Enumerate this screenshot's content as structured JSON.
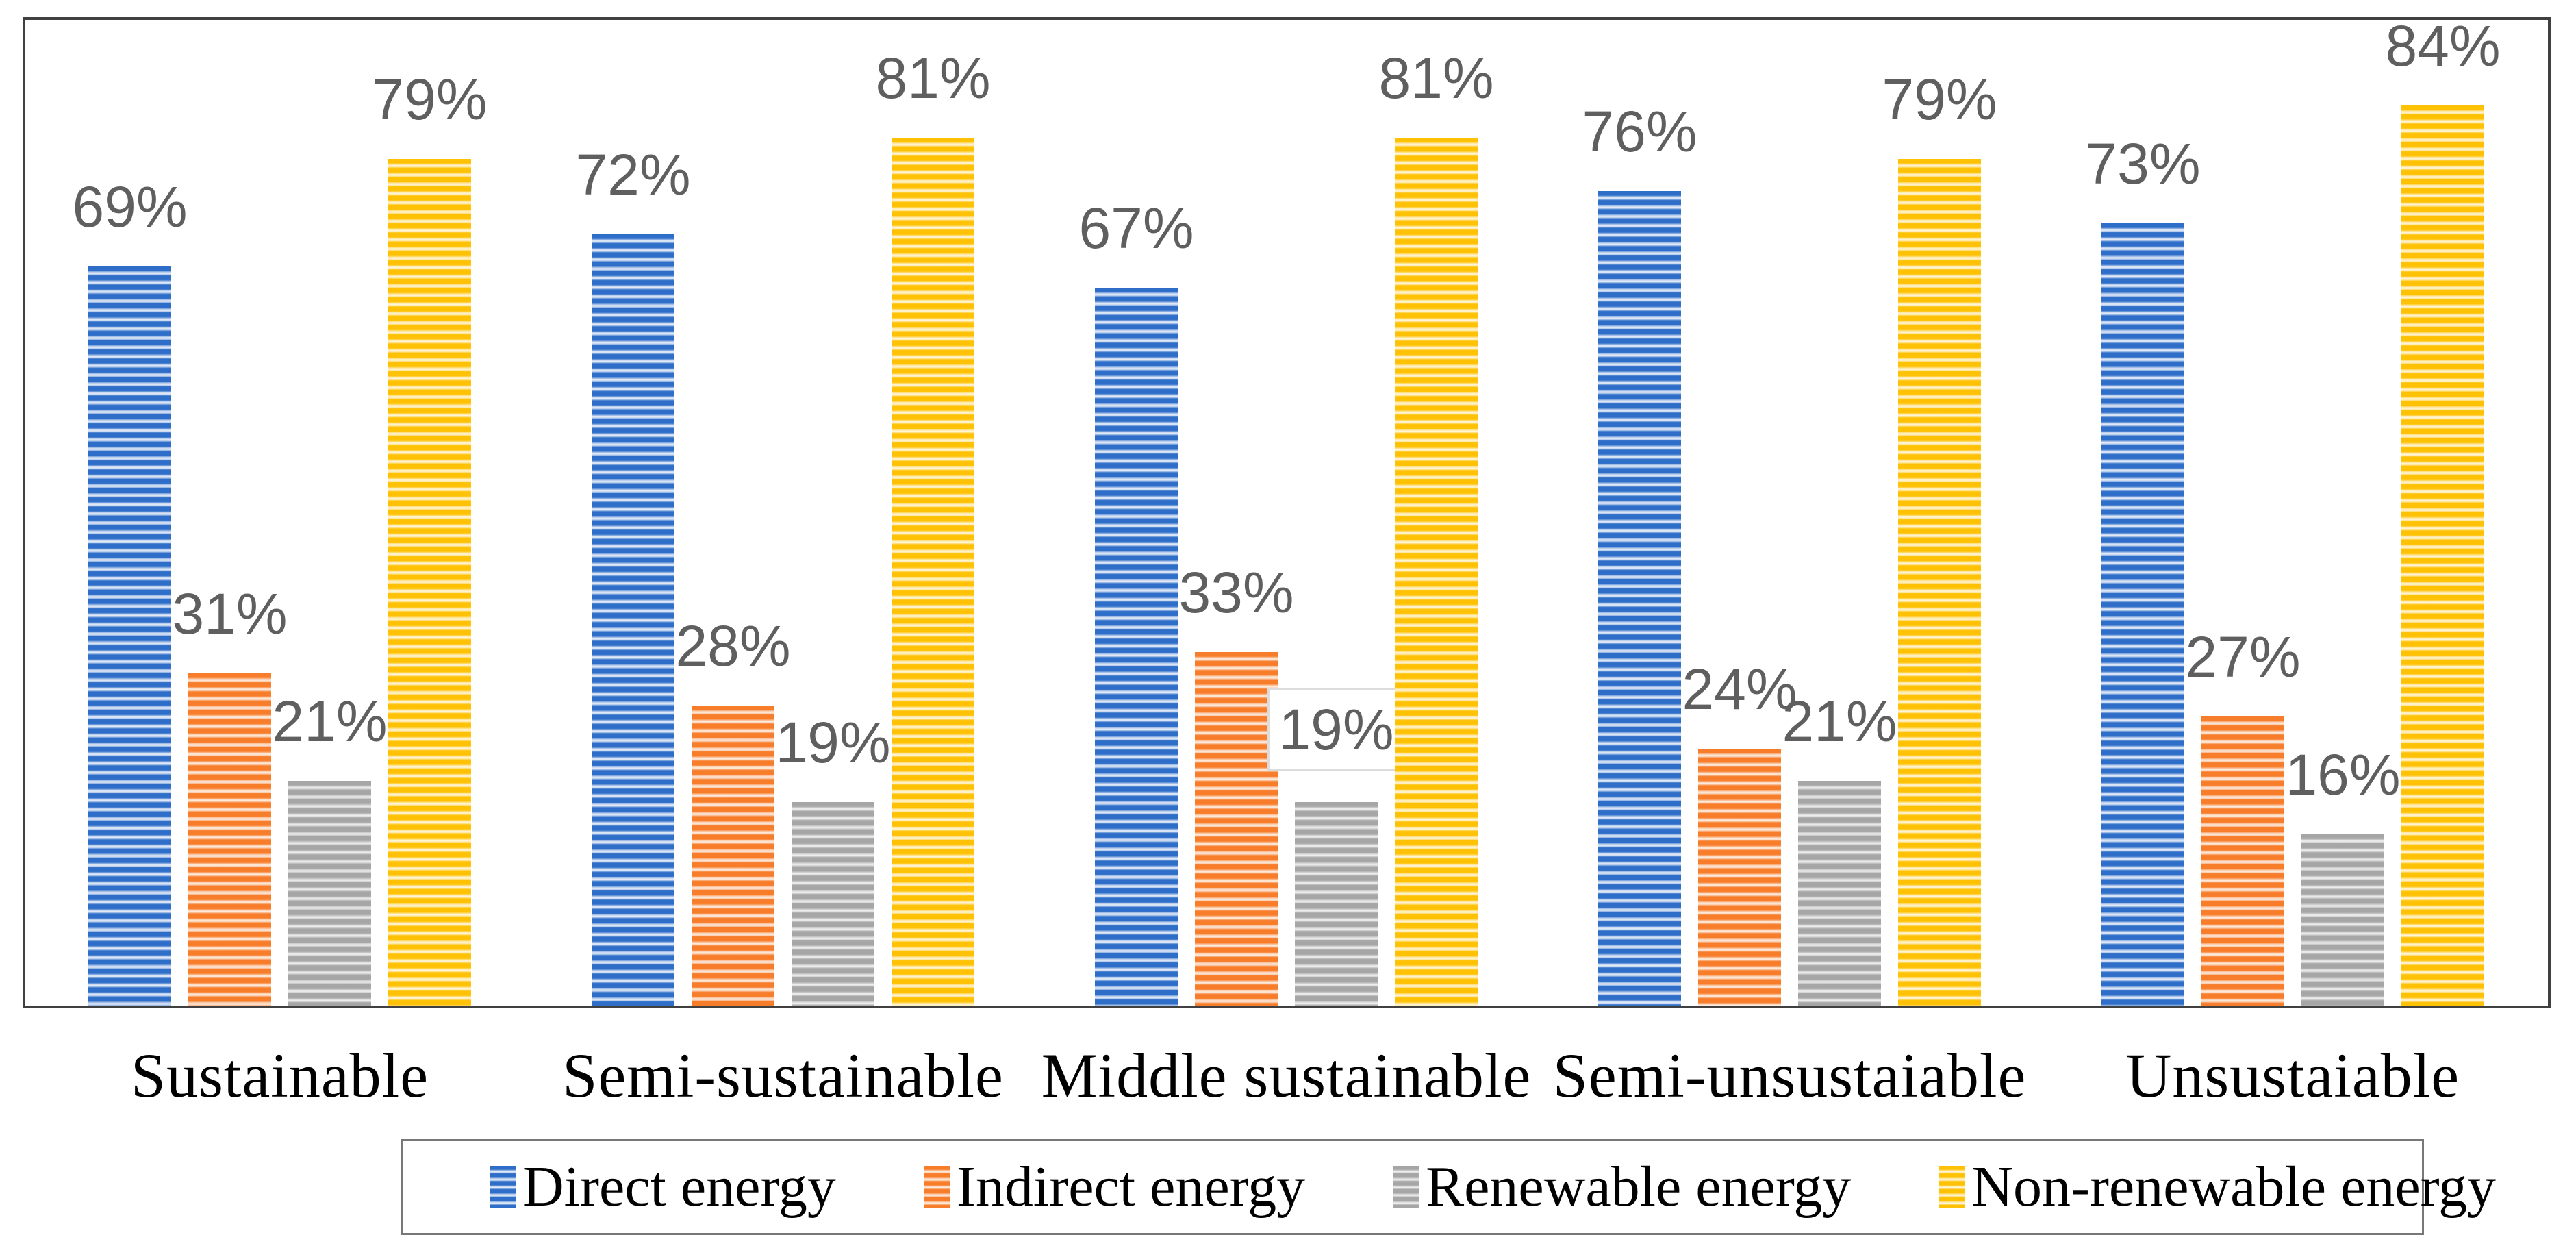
{
  "chart_data": {
    "type": "bar",
    "title": "",
    "xlabel": "",
    "ylabel": "",
    "categories": [
      "Sustainable",
      "Semi-sustainable",
      "Middle sustainable",
      "Semi-unsustaiable",
      "Unsustaiable"
    ],
    "series": [
      {
        "name": "Direct energy",
        "color": "#2E6EC8",
        "color_light": "#BFD2EE",
        "color_pale": "#E6EDF9",
        "values": [
          69,
          72,
          67,
          76,
          73
        ]
      },
      {
        "name": "Indirect energy",
        "color": "#F87D2A",
        "color_light": "#FBD4BA",
        "color_pale": "#FEEDDE",
        "values": [
          31,
          28,
          33,
          24,
          27
        ]
      },
      {
        "name": "Renewable energy",
        "color": "#A6A6A6",
        "color_light": "#D8D8D8",
        "color_pale": "#F1F1F1",
        "values": [
          21,
          19,
          19,
          21,
          16
        ]
      },
      {
        "name": "Non-renewable energy",
        "color": "#FFC103",
        "color_light": "#FFE9A9",
        "color_pale": "#FFF7DB",
        "values": [
          79,
          81,
          81,
          79,
          84
        ]
      }
    ],
    "value_suffix": "%",
    "ylim": [
      0,
      92
    ],
    "gridlines": false,
    "y_axis_labels_visible": false,
    "bar_pattern": "horizontal-stripes",
    "legend_position": "bottom",
    "boxed_data_label": {
      "category_index": 2,
      "series_index": 2
    },
    "colors": {
      "background": "#FFFFFF",
      "data_label": "#5F5F5F",
      "category_label": "#000000",
      "frame_border": "#404040",
      "legend_border": "#787878",
      "boxed_label_border": "#DCDCDC",
      "boxed_label_background": "#FFFFFF"
    }
  }
}
